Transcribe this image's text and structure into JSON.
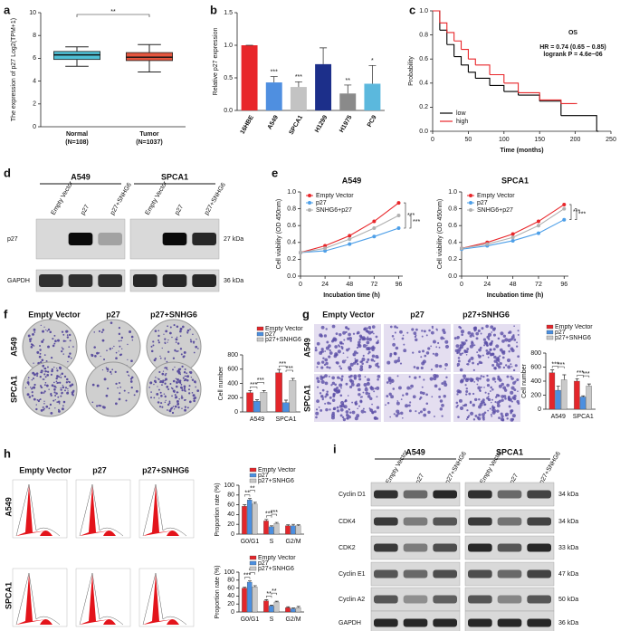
{
  "panel_labels": [
    "a",
    "b",
    "c",
    "d",
    "e",
    "f",
    "g",
    "h",
    "i"
  ],
  "chart_data": [
    {
      "type": "box",
      "ylabel": "The expression of p27 Log2(TPM+1)",
      "categories": [
        "Normal",
        "Tumor"
      ],
      "category_notes": [
        "(N=108)",
        "(N=1037)"
      ],
      "colors": [
        "#4fc0d6",
        "#e4553e"
      ],
      "boxes": [
        {
          "whislo": 5.3,
          "q1": 5.9,
          "med": 6.3,
          "q3": 6.6,
          "whishi": 7.0
        },
        {
          "whislo": 4.8,
          "q1": 5.8,
          "med": 6.1,
          "q3": 6.5,
          "whishi": 7.2
        }
      ],
      "ylim": [
        0,
        10
      ],
      "yticks": [
        0,
        2,
        4,
        6,
        8,
        10
      ],
      "significance": "**"
    },
    {
      "type": "bar",
      "ylabel": "Relative p27 expression",
      "categories": [
        "16HBE",
        "A549",
        "SPCA1",
        "H1299",
        "H1975",
        "PC9"
      ],
      "values": [
        1.0,
        0.43,
        0.36,
        0.71,
        0.26,
        0.41
      ],
      "errors": [
        0,
        0.09,
        0.08,
        0.25,
        0.13,
        0.28
      ],
      "colors": [
        "#e8262a",
        "#4f8fe0",
        "#c3c3c3",
        "#1c2f8a",
        "#8a8a8a",
        "#5bb8dd"
      ],
      "significance": [
        null,
        "***",
        "***",
        null,
        "**",
        "*"
      ],
      "ylim": [
        0,
        1.5
      ],
      "yticks": [
        {
          "value": 0,
          "label": "0.0"
        },
        {
          "value": 0.5,
          "label": "0.5"
        },
        {
          "value": 1,
          "label": "1.0"
        },
        {
          "value": 1.5,
          "label": "1.5"
        }
      ]
    },
    {
      "type": "km",
      "title": "OS",
      "annotations": [
        "HR = 0.74 (0.65 − 0.85)",
        "logrank P = 4.6e−06"
      ],
      "xlabel": "Time (months)",
      "ylabel": "Probability",
      "series": [
        {
          "name": "low",
          "color": "#000000",
          "x": [
            0,
            10,
            20,
            30,
            40,
            50,
            60,
            80,
            100,
            120,
            150,
            180,
            230
          ],
          "y": [
            1,
            0.84,
            0.72,
            0.62,
            0.55,
            0.49,
            0.44,
            0.38,
            0.33,
            0.3,
            0.25,
            0.13,
            0
          ]
        },
        {
          "name": "high",
          "color": "#e8262a",
          "x": [
            0,
            10,
            20,
            30,
            40,
            50,
            60,
            80,
            100,
            120,
            150,
            180,
            200
          ],
          "y": [
            1,
            0.9,
            0.82,
            0.75,
            0.68,
            0.6,
            0.55,
            0.47,
            0.4,
            0.32,
            0.26,
            0.23,
            0.23
          ]
        }
      ],
      "xlim": [
        0,
        250
      ],
      "xticks": [
        0,
        50,
        100,
        150,
        200,
        250
      ],
      "ylim": [
        0,
        1
      ],
      "yticks": [
        {
          "value": 0,
          "label": "0.0"
        },
        {
          "value": 0.2,
          "label": "0.2"
        },
        {
          "value": 0.4,
          "label": "0.4"
        },
        {
          "value": 0.6,
          "label": "0.6"
        },
        {
          "value": 0.8,
          "label": "0.8"
        },
        {
          "value": 1,
          "label": "1.0"
        }
      ],
      "legend": "bottom-left"
    },
    {
      "type": "line",
      "title": "A549",
      "xlabel": "Incubation time (h)",
      "ylabel": "Cell viability (OD 450nm)",
      "x": [
        0,
        24,
        48,
        72,
        96
      ],
      "series": [
        {
          "name": "Empty Vector",
          "color": "#e8262a",
          "values": [
            0.28,
            0.36,
            0.48,
            0.65,
            0.87
          ]
        },
        {
          "name": "p27",
          "color": "#4d9fe8",
          "values": [
            0.28,
            0.3,
            0.38,
            0.47,
            0.57
          ]
        },
        {
          "name": "SNHG6+p27",
          "color": "#b0b0b0",
          "values": [
            0.28,
            0.33,
            0.44,
            0.57,
            0.72
          ]
        }
      ],
      "xlim": [
        0,
        100
      ],
      "xticks": [
        0,
        24,
        48,
        72,
        96
      ],
      "ylim": [
        0,
        1
      ],
      "yticks": [
        {
          "value": 0,
          "label": "0.0"
        },
        {
          "value": 0.2,
          "label": "0.2"
        },
        {
          "value": 0.4,
          "label": "0.4"
        },
        {
          "value": 0.6,
          "label": "0.6"
        },
        {
          "value": 0.8,
          "label": "0.8"
        },
        {
          "value": 1,
          "label": "1.0"
        }
      ],
      "significance": [
        "***",
        "***"
      ]
    },
    {
      "type": "line",
      "title": "SPCA1",
      "xlabel": "Incubation time (h)",
      "ylabel": "Cell viability (OD 450nm)",
      "x": [
        0,
        24,
        48,
        72,
        96
      ],
      "series": [
        {
          "name": "Empty Vector",
          "color": "#e8262a",
          "values": [
            0.33,
            0.4,
            0.5,
            0.65,
            0.85
          ]
        },
        {
          "name": "p27",
          "color": "#4d9fe8",
          "values": [
            0.32,
            0.36,
            0.42,
            0.51,
            0.67
          ]
        },
        {
          "name": "SNHG6+p27",
          "color": "#b0b0b0",
          "values": [
            0.33,
            0.38,
            0.46,
            0.6,
            0.8
          ]
        }
      ],
      "xlim": [
        0,
        100
      ],
      "xticks": [
        0,
        24,
        48,
        72,
        96
      ],
      "ylim": [
        0,
        1
      ],
      "yticks": [
        {
          "value": 0,
          "label": "0.0"
        },
        {
          "value": 0.2,
          "label": "0.2"
        },
        {
          "value": 0.4,
          "label": "0.4"
        },
        {
          "value": 0.6,
          "label": "0.6"
        },
        {
          "value": 0.8,
          "label": "0.8"
        },
        {
          "value": 1,
          "label": "1.0"
        }
      ],
      "significance": [
        "***",
        "***"
      ]
    },
    {
      "type": "grouped_bar",
      "ylabel": "Cell number",
      "categories": [
        "A549",
        "SPCA1"
      ],
      "series": [
        {
          "name": "Empty Vector",
          "color": "#e3262b",
          "values": [
            270,
            550
          ],
          "errors": [
            30,
            45
          ]
        },
        {
          "name": "p27",
          "color": "#4b8fe0",
          "values": [
            150,
            130
          ],
          "errors": [
            20,
            35
          ]
        },
        {
          "name": "p27+SNHG6",
          "color": "#c9c9c9",
          "values": [
            275,
            440
          ],
          "errors": [
            25,
            30
          ]
        }
      ],
      "ylim": [
        0,
        800
      ],
      "yticks": [
        0,
        200,
        400,
        600,
        800
      ],
      "significance": [
        [
          "***",
          "***"
        ],
        [
          "***",
          "***"
        ]
      ]
    },
    {
      "type": "grouped_bar",
      "ylabel": "Cell number",
      "categories": [
        "A549",
        "SPCA1"
      ],
      "series": [
        {
          "name": "Empty Vector",
          "color": "#e3262b",
          "values": [
            520,
            400
          ],
          "errors": [
            40,
            35
          ]
        },
        {
          "name": "p27",
          "color": "#4b8fe0",
          "values": [
            270,
            175
          ],
          "errors": [
            60,
            15
          ]
        },
        {
          "name": "p27+SNHG6",
          "color": "#c9c9c9",
          "values": [
            420,
            330
          ],
          "errors": [
            70,
            30
          ]
        }
      ],
      "ylim": [
        0,
        800
      ],
      "yticks": [
        0,
        200,
        400,
        600,
        800
      ],
      "significance": [
        [
          "***",
          "***"
        ],
        [
          "***",
          "***"
        ]
      ]
    },
    {
      "type": "grouped_bar",
      "ylabel": "Proportion rate (%)",
      "categories": [
        "G0/G1",
        "S",
        "G2/M"
      ],
      "series": [
        {
          "name": "Empty Vector",
          "color": "#e3262b",
          "values": [
            57,
            27,
            17
          ],
          "errors": [
            3,
            3,
            2
          ]
        },
        {
          "name": "p27",
          "color": "#4b8fe0",
          "values": [
            70,
            15,
            17
          ],
          "errors": [
            3,
            2,
            3
          ]
        },
        {
          "name": "p27+SNHG6",
          "color": "#c9c9c9",
          "values": [
            62,
            22,
            17
          ],
          "errors": [
            3,
            2,
            2
          ]
        }
      ],
      "ylim": [
        0,
        100
      ],
      "yticks": [
        0,
        20,
        40,
        60,
        80,
        100
      ],
      "significance": [
        [
          "**",
          "**"
        ],
        [
          "***",
          "***"
        ],
        [
          null,
          null
        ]
      ]
    },
    {
      "type": "grouped_bar",
      "ylabel": "Proportion rate (%)",
      "categories": [
        "G0/G1",
        "S",
        "G2/M"
      ],
      "series": [
        {
          "name": "Empty Vector",
          "color": "#e3262b",
          "values": [
            60,
            28,
            11
          ],
          "errors": [
            2,
            3,
            2
          ]
        },
        {
          "name": "p27",
          "color": "#4b8fe0",
          "values": [
            75,
            15,
            8
          ],
          "errors": [
            3,
            2,
            2
          ]
        },
        {
          "name": "p27+SNHG6",
          "color": "#c9c9c9",
          "values": [
            63,
            25,
            11
          ],
          "errors": [
            3,
            2,
            3
          ]
        }
      ],
      "ylim": [
        0,
        100
      ],
      "yticks": [
        0,
        20,
        40,
        60,
        80,
        100
      ],
      "significance": [
        [
          "***",
          "***"
        ],
        [
          "**",
          "**"
        ],
        [
          null,
          null
        ]
      ]
    }
  ],
  "blots": [
    {
      "cell_lines": [
        "A549",
        "SPCA1"
      ],
      "lanes": [
        "Empty Vector",
        "p27",
        "p27+SNHG6"
      ],
      "proteins": [
        "p27",
        "GAPDH"
      ],
      "sizes": [
        "27 kDa",
        "36 kDa"
      ]
    },
    {
      "cell_lines": [
        "A549",
        "SPCA1"
      ],
      "lanes": [
        "Empty Vector",
        "p27",
        "p27+SNHG6"
      ],
      "proteins": [
        "Cyclin D1",
        "CDK4",
        "CDK2",
        "Cyclin E1",
        "Cyclin A2",
        "GAPDH"
      ],
      "sizes": [
        "34 kDa",
        "34 kDa",
        "33 kDa",
        "47 kDa",
        "50 kDa",
        "36 kDa"
      ]
    }
  ],
  "image_panels": [
    {
      "columns": [
        "Empty Vector",
        "p27",
        "p27+SNHG6"
      ],
      "rows": [
        "A549",
        "SPCA1"
      ]
    },
    {
      "columns": [
        "Empty Vector",
        "p27",
        "p27+SNHG6"
      ],
      "rows": [
        "A549",
        "SPCA1"
      ]
    },
    {
      "columns": [
        "Empty Vector",
        "p27",
        "p27+SNHG6"
      ],
      "rows": [
        "A549",
        "SPCA1"
      ]
    }
  ]
}
